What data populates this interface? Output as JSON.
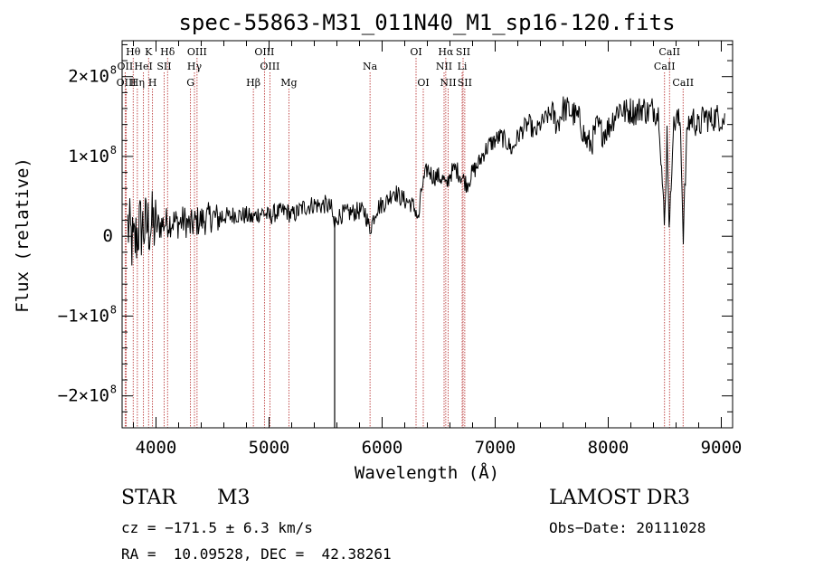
{
  "chart_data": {
    "type": "line",
    "title": "spec-55863-M31_011N40_M1_sp16-120.fits",
    "xlabel": "Wavelength (Å)",
    "ylabel": "Flux (relative)",
    "xlim": [
      3700,
      9100
    ],
    "ylim": [
      -240000000.0,
      245000000.0
    ],
    "x_ticks": [
      {
        "value": 4000,
        "label": "4000"
      },
      {
        "value": 5000,
        "label": "5000"
      },
      {
        "value": 6000,
        "label": "6000"
      },
      {
        "value": 7000,
        "label": "7000"
      },
      {
        "value": 8000,
        "label": "8000"
      },
      {
        "value": 9000,
        "label": "9000"
      }
    ],
    "y_ticks": [
      {
        "value": 200000000.0,
        "mant": "2×10",
        "exp": "8"
      },
      {
        "value": 100000000.0,
        "mant": "1×10",
        "exp": "8"
      },
      {
        "value": 0,
        "mant": "0",
        "exp": ""
      },
      {
        "value": -100000000.0,
        "mant": "−1×10",
        "exp": "8"
      },
      {
        "value": -200000000.0,
        "mant": "−2×10",
        "exp": "8"
      }
    ],
    "line_color": "#000000",
    "marker_color": "#b22222",
    "spectrum": {
      "x": [
        3750,
        3800,
        3850,
        3900,
        3950,
        4000,
        4050,
        4100,
        4150,
        4200,
        4250,
        4300,
        4350,
        4400,
        4450,
        4500,
        4550,
        4600,
        4650,
        4700,
        4750,
        4800,
        4850,
        4900,
        4950,
        5000,
        5050,
        5100,
        5150,
        5200,
        5250,
        5300,
        5350,
        5400,
        5450,
        5500,
        5550,
        5580,
        5600,
        5650,
        5700,
        5750,
        5800,
        5850,
        5890,
        5950,
        6000,
        6050,
        6100,
        6150,
        6200,
        6250,
        6300,
        6320,
        6350,
        6400,
        6450,
        6500,
        6550,
        6563,
        6600,
        6650,
        6700,
        6750,
        6800,
        6850,
        6900,
        6950,
        7000,
        7050,
        7100,
        7150,
        7200,
        7250,
        7300,
        7350,
        7400,
        7450,
        7500,
        7550,
        7600,
        7650,
        7700,
        7750,
        7800,
        7850,
        7900,
        7950,
        8000,
        8050,
        8100,
        8150,
        8200,
        8250,
        8300,
        8350,
        8400,
        8450,
        8498,
        8520,
        8542,
        8570,
        8600,
        8640,
        8662,
        8700,
        8750,
        8800,
        8850,
        8900,
        8950,
        9000,
        9030
      ],
      "y": [
        13000000.0,
        -15000000.0,
        12000000.0,
        10000000.0,
        15000000.0,
        12000000.0,
        15000000.0,
        18000000.0,
        19000000.0,
        16000000.0,
        20000000.0,
        12000000.0,
        18000000.0,
        20000000.0,
        22000000.0,
        25000000.0,
        22000000.0,
        26000000.0,
        24000000.0,
        28000000.0,
        26000000.0,
        26000000.0,
        22000000.0,
        28000000.0,
        30000000.0,
        24000000.0,
        29000000.0,
        30000000.0,
        32000000.0,
        26000000.0,
        30000000.0,
        36000000.0,
        38000000.0,
        40000000.0,
        38000000.0,
        40000000.0,
        35000000.0,
        10000000.0,
        24000000.0,
        28000000.0,
        29000000.0,
        30000000.0,
        32000000.0,
        30000000.0,
        8000000.0,
        35000000.0,
        40000000.0,
        45000000.0,
        58000000.0,
        50000000.0,
        45000000.0,
        42000000.0,
        32000000.0,
        18000000.0,
        60000000.0,
        85000000.0,
        75000000.0,
        75000000.0,
        70000000.0,
        60000000.0,
        78000000.0,
        85000000.0,
        75000000.0,
        65000000.0,
        80000000.0,
        90000000.0,
        105000000.0,
        115000000.0,
        120000000.0,
        125000000.0,
        118000000.0,
        108000000.0,
        125000000.0,
        135000000.0,
        142000000.0,
        128000000.0,
        140000000.0,
        148000000.0,
        155000000.0,
        140000000.0,
        160000000.0,
        158000000.0,
        152000000.0,
        145000000.0,
        120000000.0,
        115000000.0,
        138000000.0,
        130000000.0,
        135000000.0,
        150000000.0,
        162000000.0,
        155000000.0,
        158000000.0,
        155000000.0,
        162000000.0,
        155000000.0,
        160000000.0,
        152000000.0,
        8000000.0,
        130000000.0,
        2000000.0,
        130000000.0,
        148000000.0,
        140000000.0,
        -1000000.0,
        140000000.0,
        148000000.0,
        135000000.0,
        152000000.0,
        145000000.0,
        150000000.0,
        148000000.0,
        145000000.0
      ]
    },
    "lines": [
      {
        "name": "Hθ",
        "wl": 3798,
        "row": 0
      },
      {
        "name": "K",
        "wl": 3934,
        "row": 0
      },
      {
        "name": "Hδ",
        "wl": 4102,
        "row": 0
      },
      {
        "name": "OIII",
        "wl": 4363,
        "row": 0
      },
      {
        "name": "OIII",
        "wl": 4959,
        "row": 0
      },
      {
        "name": "OI",
        "wl": 6300,
        "row": 0
      },
      {
        "name": "Hα",
        "wl": 6563,
        "row": 0
      },
      {
        "name": "SII",
        "wl": 6716,
        "row": 0
      },
      {
        "name": "CaII",
        "wl": 8542,
        "row": 0
      },
      {
        "name": "OII",
        "wl": 3727,
        "row": 1
      },
      {
        "name": "HeI",
        "wl": 3889,
        "row": 1
      },
      {
        "name": "SII",
        "wl": 4072,
        "row": 1
      },
      {
        "name": "Hγ",
        "wl": 4340,
        "row": 1
      },
      {
        "name": "OIII",
        "wl": 5007,
        "row": 1
      },
      {
        "name": "Na",
        "wl": 5893,
        "row": 1
      },
      {
        "name": "NII",
        "wl": 6548,
        "row": 1
      },
      {
        "name": "Li",
        "wl": 6708,
        "row": 1
      },
      {
        "name": "CaII",
        "wl": 8498,
        "row": 1
      },
      {
        "name": "OIII",
        "wl": 3737,
        "row": 2
      },
      {
        "name": "Hη",
        "wl": 3835,
        "row": 2
      },
      {
        "name": "H",
        "wl": 3969,
        "row": 2
      },
      {
        "name": "G",
        "wl": 4305,
        "row": 2
      },
      {
        "name": "Hβ",
        "wl": 4861,
        "row": 2
      },
      {
        "name": "Mg",
        "wl": 5175,
        "row": 2
      },
      {
        "name": "OI",
        "wl": 6364,
        "row": 2
      },
      {
        "name": "NII",
        "wl": 6584,
        "row": 2
      },
      {
        "name": "SII",
        "wl": 6731,
        "row": 2
      },
      {
        "name": "CaII",
        "wl": 8662,
        "row": 2
      }
    ]
  },
  "info": {
    "class": "STAR",
    "subclass": "M3",
    "survey": "LAMOST DR3",
    "cz": "cz = −171.5 ± 6.3 km/s",
    "obs_date": "Obs−Date: 20111028",
    "radec": "RA =  10.09528, DEC =  42.38261"
  }
}
